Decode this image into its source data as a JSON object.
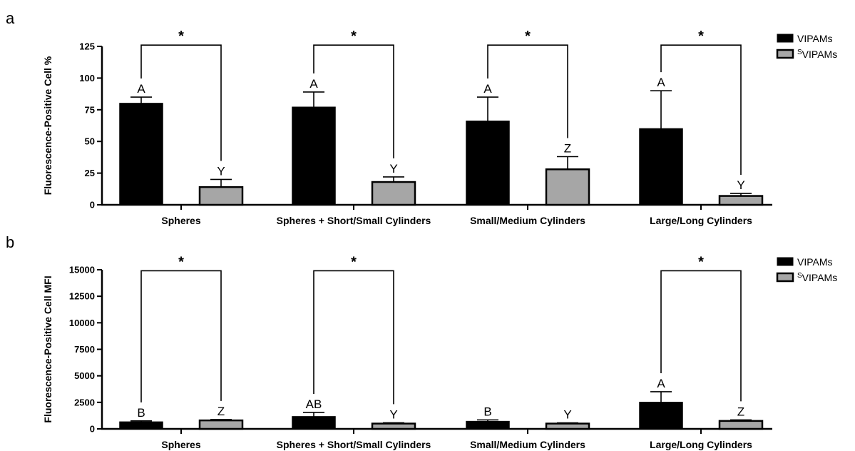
{
  "colors": {
    "vipams": "#000000",
    "svipams": "#a6a6a6",
    "svipams_letter": "#999999"
  },
  "chart_data": [
    {
      "panel": "a",
      "type": "bar",
      "ylabel": "Fluorescence-Positive Cell %",
      "ylim": [
        0,
        125
      ],
      "yticks": [
        0,
        25,
        50,
        75,
        100,
        125
      ],
      "categories": [
        "Spheres",
        "Spheres + Short/Small Cylinders",
        "Small/Medium Cylinders",
        "Large/Long Cylinders"
      ],
      "legend": {
        "placement": "top-right"
      },
      "series": [
        {
          "name": "VIPAMs",
          "sup": "",
          "color": "#000000",
          "values": [
            80,
            77,
            66,
            60
          ],
          "errors": [
            5,
            12,
            19,
            30
          ],
          "letters": [
            "A",
            "A",
            "A",
            "A"
          ]
        },
        {
          "name": "VIPAMs",
          "sup": "S",
          "color": "#a6a6a6",
          "values": [
            14,
            18,
            28,
            7
          ],
          "errors": [
            6,
            4,
            10,
            2
          ],
          "letters": [
            "Y",
            "Y",
            "Z",
            "Y"
          ]
        }
      ],
      "brackets": [
        {
          "category": 0,
          "y": 126,
          "label": "*"
        },
        {
          "category": 1,
          "y": 126,
          "label": "*"
        },
        {
          "category": 2,
          "y": 126,
          "label": "*"
        },
        {
          "category": 3,
          "y": 126,
          "label": "*"
        }
      ]
    },
    {
      "panel": "b",
      "type": "bar",
      "ylabel": "Fluorescence-Positive Cell MFI",
      "ylim": [
        0,
        15000
      ],
      "yticks": [
        0,
        2500,
        5000,
        7500,
        10000,
        12500,
        15000
      ],
      "categories": [
        "Spheres",
        "Spheres + Short/Small Cylinders",
        "Small/Medium Cylinders",
        "Large/Long Cylinders"
      ],
      "legend": {
        "placement": "top-right"
      },
      "series": [
        {
          "name": "VIPAMs",
          "sup": "",
          "color": "#000000",
          "values": [
            650,
            1150,
            700,
            2500
          ],
          "errors": [
            100,
            400,
            150,
            1000
          ],
          "letters": [
            "B",
            "AB",
            "B",
            "A"
          ]
        },
        {
          "name": "VIPAMs",
          "sup": "S",
          "color": "#a6a6a6",
          "values": [
            800,
            500,
            500,
            750
          ],
          "errors": [
            80,
            80,
            70,
            100
          ],
          "letters": [
            "Z",
            "Y",
            "Y",
            "Z"
          ]
        }
      ],
      "brackets": [
        {
          "category": 0,
          "y": 14900,
          "label": "*"
        },
        {
          "category": 1,
          "y": 14900,
          "label": "*"
        },
        {
          "category": 3,
          "y": 14900,
          "label": "*"
        }
      ]
    }
  ]
}
